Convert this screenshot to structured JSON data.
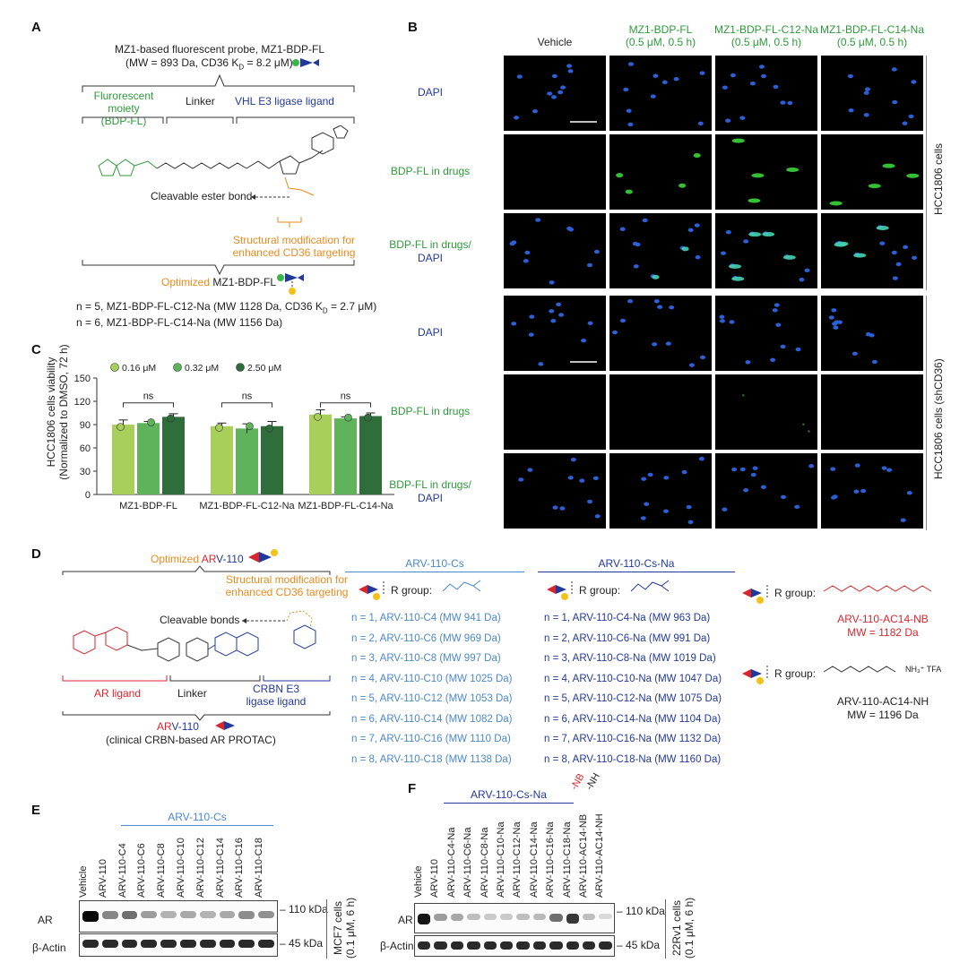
{
  "panels": {
    "A": "A",
    "B": "B",
    "C": "C",
    "D": "D",
    "E": "E",
    "F": "F"
  },
  "panelA": {
    "title_line1": "MZ1-based fluorescent probe, MZ1-BDP-FL",
    "title_line2": "(MW = 893 Da, CD36 K",
    "title_line2_sub": "D",
    "title_line2_end": " = 8.2 μM)",
    "moiety_fluor": "Flurorescent moiety",
    "moiety_fluor2": "(BDP-FL)",
    "moiety_linker": "Linker",
    "moiety_vhl": "VHL E3 ligase ligand",
    "cleavable": "Cleavable ester bond",
    "modification1": "Structural modification for",
    "modification2": "enhanced CD36 targeting",
    "optimized_prefix": "Optimized",
    "optimized_name": "MZ1-BDP-FL",
    "n5_line": "n = 5, MZ1-BDP-FL-C12-Na  (MW 1128 Da, CD36 K",
    "n5_sub": "D",
    "n5_end": " = 2.7 μM)",
    "n6_line": "n = 6, MZ1-BDP-FL-C14-Na  (MW 1156 Da)"
  },
  "panelB": {
    "columns": [
      {
        "l1": "Vehicle",
        "l2": ""
      },
      {
        "l1": "MZ1-BDP-FL",
        "l2": "(0.5 μM, 0.5 h)"
      },
      {
        "l1": "MZ1-BDP-FL-C12-Na",
        "l2": "(0.5 μM, 0.5 h)"
      },
      {
        "l1": "MZ1-BDP-FL-C14-Na",
        "l2": "(0.5 μM, 0.5 h)"
      }
    ],
    "rows": [
      {
        "l1": "DAPI",
        "l2": ""
      },
      {
        "l1": "BDP-FL in drugs",
        "l2": ""
      },
      {
        "l1": "BDP-FL in drugs/",
        "l2": "DAPI"
      },
      {
        "l1": "DAPI",
        "l2": ""
      },
      {
        "l1": "BDP-FL in drugs",
        "l2": ""
      },
      {
        "l1": "BDP-FL in drugs/",
        "l2": "DAPI"
      }
    ],
    "group_top": "HCC1806 cells",
    "group_bottom": "HCC1806 cells (shCD36)"
  },
  "chart_data": {
    "type": "bar",
    "ylabel": "HCC1806 cells viability",
    "ylabel2": "(Normalized to DMSO, 72 h)",
    "ylim": [
      0,
      150
    ],
    "yticks": [
      0,
      30,
      60,
      90,
      120,
      150
    ],
    "categories": [
      "MZ1-BDP-FL",
      "MZ1-BDP-FL-C12-Na",
      "MZ1-BDP-FL-C14-Na"
    ],
    "series": [
      {
        "name": "0.16 μM",
        "values": [
          90,
          88,
          103
        ],
        "color": "#a8cf5a"
      },
      {
        "name": "0.32 μM",
        "values": [
          92,
          85,
          98
        ],
        "color": "#5fb35a"
      },
      {
        "name": "2.50 μM",
        "values": [
          100,
          88,
          101
        ],
        "color": "#2f6d3a"
      }
    ],
    "errors": [
      [
        6,
        4,
        6
      ],
      [
        2,
        6,
        2
      ],
      [
        4,
        6,
        4
      ]
    ],
    "significance": [
      "ns",
      "ns",
      "ns"
    ],
    "legend_position": "top"
  },
  "panelD": {
    "optimized_prefix": "Optimized",
    "opt_ar": "AR",
    "opt_rest": "V-110",
    "modification1": "Structural modification for",
    "modification2": "enhanced CD36 targeting",
    "cleavable": "Cleavable bonds",
    "ar_ligand": "AR ligand",
    "linker": "Linker",
    "crbn1": "CRBN E3",
    "crbn2": "ligase ligand",
    "arv_ar": "AR",
    "arv_rest": "V-110",
    "arv_sub": "(clinical CRBN-based AR PROTAC)",
    "cs_header": "ARV-110-Cs",
    "csna_header": "ARV-110-Cs-Na",
    "rgroup": "R group:",
    "cs_list": [
      "n = 1, ARV-110-C4 (MW 941 Da)",
      "n = 2, ARV-110-C6 (MW 969 Da)",
      "n = 3, ARV-110-C8 (MW 997 Da)",
      "n = 4, ARV-110-C10 (MW 1025 Da)",
      "n = 5, ARV-110-C12 (MW 1053 Da)",
      "n = 6, ARV-110-C14 (MW 1082 Da)",
      "n = 7, ARV-110-C16 (MW 1110 Da)",
      "n = 8, ARV-110-C18 (MW 1138 Da)"
    ],
    "csna_list": [
      "n = 1, ARV-110-C4-Na (MW 963 Da)",
      "n = 2, ARV-110-C6-Na (MW 991 Da)",
      "n = 3, ARV-110-C8-Na (MW 1019 Da)",
      "n = 4, ARV-110-C10-Na (MW 1047 Da)",
      "n = 5, ARV-110-C12-Na (MW 1075 Da)",
      "n = 6, ARV-110-C14-Na (MW 1104 Da)",
      "n = 7, ARV-110-C16-Na (MW 1132 Da)",
      "n = 8, ARV-110-C18-Na (MW 1160 Da)"
    ],
    "nb_name": "ARV-110-AC14-NB",
    "nb_mw": "MW = 1182 Da",
    "nh_name": "ARV-110-AC14-NH",
    "nh_mw": "MW = 1196 Da",
    "tfa": "NH₃⁺ TFA"
  },
  "panelE": {
    "group": "ARV-110-Cs",
    "lanes": [
      "Vehicle",
      "ARV-110",
      "ARV-110-C4",
      "ARV-110-C6",
      "ARV-110-C8",
      "ARV-110-C10",
      "ARV-110-C12",
      "ARV-110-C14",
      "ARV-110-C16",
      "ARV-110-C18"
    ],
    "ar": "AR",
    "actin": "β-Actin",
    "kda110": "110 kDa",
    "kda45": "45 kDa",
    "cells1": "MCF7 cells",
    "cells2": "(0.1 μM, 6 h)",
    "ar_intensity": [
      1.0,
      0.45,
      0.55,
      0.35,
      0.25,
      0.3,
      0.25,
      0.3,
      0.42,
      0.4
    ]
  },
  "panelF": {
    "group": "ARV-110-Cs-Na",
    "nb": "-NB",
    "nh": "-NH",
    "lanes": [
      "Vehicle",
      "ARV-110",
      "ARV-110-C4-Na",
      "ARV-110-C6-Na",
      "ARV-110-C8-Na",
      "ARV-110-C10-Na",
      "ARV-110-C12-Na",
      "ARV-110-C14-Na",
      "ARV-110-C16-Na",
      "ARV-110-C18-Na",
      "ARV-110-AC14-NB",
      "ARV-110-AC14-NH"
    ],
    "ar": "AR",
    "actin": "β-Actin",
    "kda110": "110 kDa",
    "kda45": "45 kDa",
    "cells1": "22Rv1 cells",
    "cells2": "(0.1 μM, 6 h)",
    "ar_intensity": [
      0.95,
      0.35,
      0.3,
      0.2,
      0.15,
      0.15,
      0.2,
      0.22,
      0.55,
      0.8,
      0.2,
      0.08
    ]
  }
}
